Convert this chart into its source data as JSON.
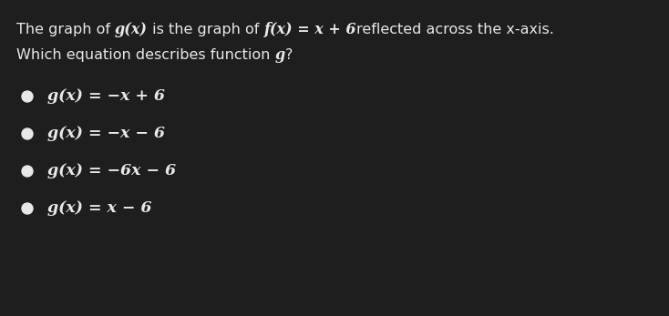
{
  "background_color": "#1e1e1e",
  "text_color": "#e8e8e8",
  "bullet_color": "#e8e8e8",
  "line1_plain": "The graph of ",
  "line1_math1": "g(x)",
  "line1_mid": " is the graph of ",
  "line1_math2": "f(x) = x + 6",
  "line1_end": "reflected across the x-axis.",
  "line2": "Which equation describes function ",
  "line2_math": "g",
  "line2_end": "?",
  "options": [
    "g(x) = −x + 6",
    "g(x) = −x − 6",
    "g(x) = −6x − 6",
    "g(x) = x − 6"
  ],
  "title_fontsize": 11.5,
  "option_fontsize": 12.5
}
